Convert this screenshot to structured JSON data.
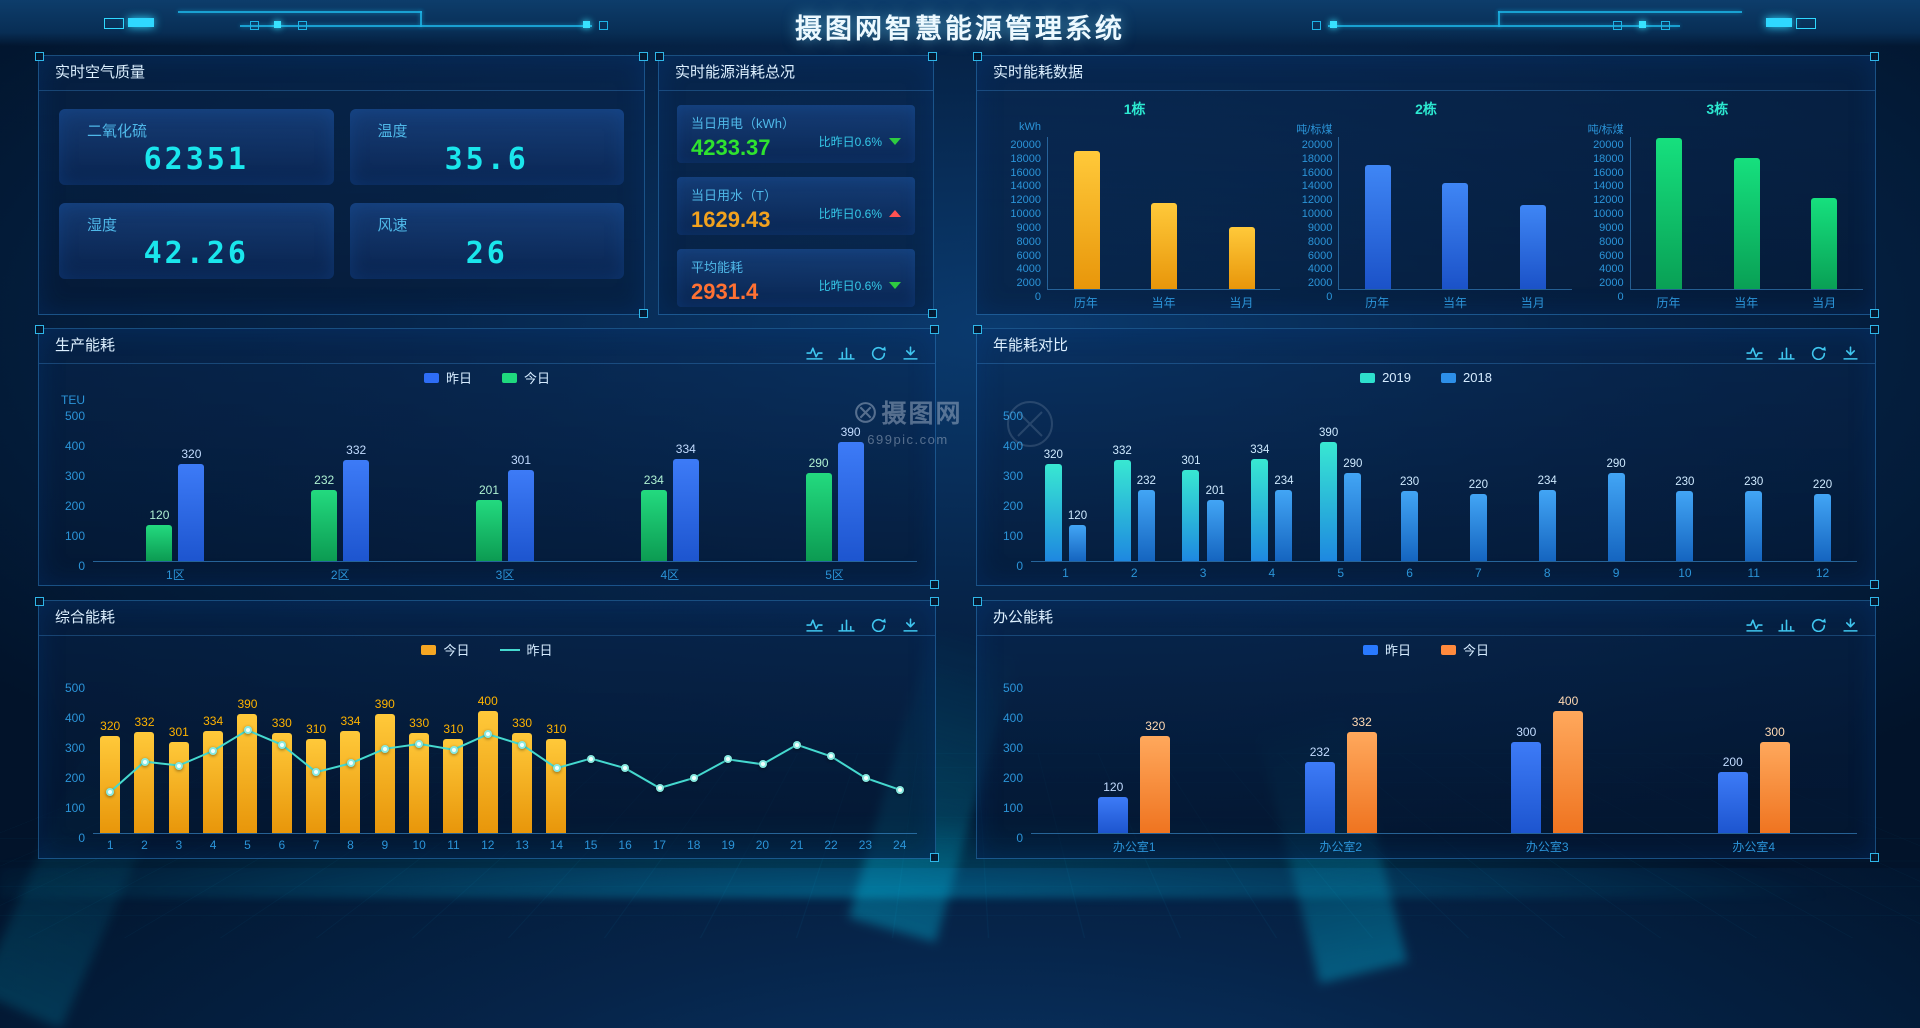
{
  "header": {
    "title": "摄图网智慧能源管理系统"
  },
  "watermark": {
    "brand": "摄图网",
    "domain": "699pic.com"
  },
  "panels": {
    "air": "实时空气质量",
    "summary": "实时能源消耗总况",
    "realtime": "实时能耗数据",
    "production": "生产能耗",
    "yearly": "年能耗对比",
    "composite": "综合能耗",
    "office": "办公能耗"
  },
  "panel_icons": [
    {
      "name": "line-chart-icon"
    },
    {
      "name": "bar-chart-icon"
    },
    {
      "name": "refresh-icon"
    },
    {
      "name": "download-icon"
    }
  ],
  "air_quality": {
    "value_color": "#1ae6ec",
    "cards": [
      {
        "label": "二氧化硫",
        "value": "62351"
      },
      {
        "label": "温度",
        "value": "35.6"
      },
      {
        "label": "湿度",
        "value": "42.26"
      },
      {
        "label": "风速",
        "value": "26"
      }
    ]
  },
  "energy_summary": {
    "rows": [
      {
        "label": "当日用电（kWh）",
        "value": "4233.37",
        "value_color": "#2fe32f",
        "compare": "比昨日0.6%",
        "trend": "down",
        "trend_color": "#2ecc40"
      },
      {
        "label": "当日用水（T）",
        "value": "1629.43",
        "value_color": "#f2a21e",
        "compare": "比昨日0.6%",
        "trend": "up",
        "trend_color": "#ff5252"
      },
      {
        "label": "平均能耗",
        "value": "2931.4",
        "value_color": "#ff7133",
        "compare": "比昨日0.6%",
        "trend": "down",
        "trend_color": "#2ecc40"
      }
    ]
  },
  "chart_data": [
    {
      "id": "building1",
      "type": "bar",
      "title": "1栋",
      "ylabel": "kWh",
      "yticks": [
        0,
        2000,
        4000,
        6000,
        8000,
        9000,
        10000,
        12000,
        14000,
        16000,
        18000,
        20000
      ],
      "categories": [
        "历年",
        "当年",
        "当月"
      ],
      "values": [
        17900,
        10400,
        8500
      ],
      "bar_color": {
        "top": "#ffc93a",
        "bottom": "#e8960a"
      }
    },
    {
      "id": "building2",
      "type": "bar",
      "title": "2栋",
      "ylabel": "吨/标煤",
      "yticks": [
        0,
        2000,
        4000,
        6000,
        8000,
        9000,
        10000,
        12000,
        14000,
        16000,
        18000,
        20000
      ],
      "categories": [
        "历年",
        "当年",
        "当月"
      ],
      "values": [
        15900,
        13400,
        10100
      ],
      "bar_color": {
        "top": "#3f86f5",
        "bottom": "#1b52c8"
      }
    },
    {
      "id": "building3",
      "type": "bar",
      "title": "3栋",
      "ylabel": "吨/标煤",
      "yticks": [
        0,
        2000,
        4000,
        6000,
        8000,
        9000,
        10000,
        12000,
        14000,
        16000,
        18000,
        20000
      ],
      "categories": [
        "历年",
        "当年",
        "当月"
      ],
      "values": [
        19900,
        17000,
        11200
      ],
      "bar_color": {
        "top": "#16e07e",
        "bottom": "#09a055"
      }
    },
    {
      "id": "production",
      "type": "grouped_bar",
      "title": "生产能耗",
      "ylabel": "TEU",
      "ylim": [
        0,
        500
      ],
      "yticks": [
        0,
        100,
        200,
        300,
        400,
        500
      ],
      "legend": [
        {
          "name": "昨日",
          "color": "#2e6df5",
          "marker": "square"
        },
        {
          "name": "今日",
          "color": "#1fd97e",
          "marker": "square"
        }
      ],
      "series_colors": {
        "今日": {
          "top": "#23da7f",
          "bottom": "#0c9b52",
          "label": "#aef0d2"
        },
        "昨日": {
          "top": "#3d7bf7",
          "bottom": "#1d55cf",
          "label": "#c3dcff"
        }
      },
      "categories": [
        {
          "label": "1区",
          "bars": [
            {
              "series": "今日",
              "value": 120
            },
            {
              "series": "昨日",
              "value": 320
            }
          ]
        },
        {
          "label": "2区",
          "bars": [
            {
              "series": "今日",
              "value": 232
            },
            {
              "series": "昨日",
              "value": 332
            }
          ]
        },
        {
          "label": "3区",
          "bars": [
            {
              "series": "今日",
              "value": 201
            },
            {
              "series": "昨日",
              "value": 301
            }
          ]
        },
        {
          "label": "4区",
          "bars": [
            {
              "series": "今日",
              "value": 234
            },
            {
              "series": "昨日",
              "value": 334
            }
          ]
        },
        {
          "label": "5区",
          "bars": [
            {
              "series": "今日",
              "value": 290
            },
            {
              "series": "昨日",
              "value": 390
            }
          ]
        }
      ]
    },
    {
      "id": "yearly",
      "type": "grouped_bar",
      "title": "年能耗对比",
      "ylabel": "",
      "ylim": [
        0,
        500
      ],
      "yticks": [
        0,
        100,
        200,
        300,
        400,
        500
      ],
      "legend": [
        {
          "name": "2019",
          "color": "#2ee0cd",
          "marker": "square"
        },
        {
          "name": "2018",
          "color": "#2d8fe8",
          "marker": "square"
        }
      ],
      "series_colors": {
        "2019": {
          "top": "#38e8d2",
          "bottom": "#1e88e0",
          "label": "#cfeaff"
        },
        "2018": {
          "top": "#42a5f5",
          "bottom": "#1565c0",
          "label": "#cfeaff"
        }
      },
      "categories": [
        {
          "label": "1",
          "bars": [
            {
              "series": "2019",
              "value": 320
            },
            {
              "series": "2018",
              "value": 120
            }
          ]
        },
        {
          "label": "2",
          "bars": [
            {
              "series": "2019",
              "value": 332
            },
            {
              "series": "2018",
              "value": 232
            }
          ]
        },
        {
          "label": "3",
          "bars": [
            {
              "series": "2019",
              "value": 301
            },
            {
              "series": "2018",
              "value": 201
            }
          ]
        },
        {
          "label": "4",
          "bars": [
            {
              "series": "2019",
              "value": 334
            },
            {
              "series": "2018",
              "value": 234
            }
          ]
        },
        {
          "label": "5",
          "bars": [
            {
              "series": "2019",
              "value": 390
            },
            {
              "series": "2018",
              "value": 290
            }
          ]
        },
        {
          "label": "6",
          "bars": [
            {
              "series": "2018",
              "value": 230
            }
          ]
        },
        {
          "label": "7",
          "bars": [
            {
              "series": "2018",
              "value": 220
            }
          ]
        },
        {
          "label": "8",
          "bars": [
            {
              "series": "2018",
              "value": 234
            }
          ]
        },
        {
          "label": "9",
          "bars": [
            {
              "series": "2018",
              "value": 290
            }
          ]
        },
        {
          "label": "10",
          "bars": [
            {
              "series": "2018",
              "value": 230
            }
          ]
        },
        {
          "label": "11",
          "bars": [
            {
              "series": "2018",
              "value": 230
            }
          ]
        },
        {
          "label": "12",
          "bars": [
            {
              "series": "2018",
              "value": 220
            }
          ]
        }
      ]
    },
    {
      "id": "composite",
      "type": "bar_line",
      "title": "综合能耗",
      "ylabel": "",
      "ylim": [
        0,
        500
      ],
      "yticks": [
        0,
        100,
        200,
        300,
        400,
        500
      ],
      "legend": [
        {
          "name": "今日",
          "color": "#f5a623",
          "marker": "square"
        },
        {
          "name": "昨日",
          "color": "#45d9cf",
          "marker": "line"
        }
      ],
      "categories": [
        "1",
        "2",
        "3",
        "4",
        "5",
        "6",
        "7",
        "8",
        "9",
        "10",
        "11",
        "12",
        "13",
        "14",
        "15",
        "16",
        "17",
        "18",
        "19",
        "20",
        "21",
        "22",
        "23",
        "24"
      ],
      "bar_series": {
        "name": "今日",
        "color_top": "#ffc93a",
        "color_bottom": "#e8960a",
        "label_color": "#ffb300",
        "values": [
          320,
          332,
          301,
          334,
          390,
          330,
          310,
          334,
          390,
          330,
          310,
          400,
          330,
          310
        ]
      },
      "line_series": {
        "name": "昨日",
        "color": "#45d9cf",
        "values": [
          135,
          235,
          222,
          270,
          338,
          290,
          200,
          229,
          277,
          293,
          274,
          325,
          290,
          213,
          245,
          213,
          148,
          181,
          242,
          226,
          290,
          252,
          181,
          142
        ]
      }
    },
    {
      "id": "office",
      "type": "grouped_bar",
      "title": "办公能耗",
      "ylabel": "",
      "ylim": [
        0,
        500
      ],
      "yticks": [
        0,
        100,
        200,
        300,
        400,
        500
      ],
      "legend": [
        {
          "name": "昨日",
          "color": "#2979ff",
          "marker": "square"
        },
        {
          "name": "今日",
          "color": "#ff8a3d",
          "marker": "square"
        }
      ],
      "series_colors": {
        "昨日": {
          "top": "#3d7bf7",
          "bottom": "#1d55cf",
          "label": "#c3dcff"
        },
        "今日": {
          "top": "#ffa85c",
          "bottom": "#ef7420",
          "label": "#ffd9b3"
        }
      },
      "categories": [
        {
          "label": "办公室1",
          "bars": [
            {
              "series": "昨日",
              "value": 120
            },
            {
              "series": "今日",
              "value": 320
            }
          ]
        },
        {
          "label": "办公室2",
          "bars": [
            {
              "series": "昨日",
              "value": 232
            },
            {
              "series": "今日",
              "value": 332
            }
          ]
        },
        {
          "label": "办公室3",
          "bars": [
            {
              "series": "昨日",
              "value": 300
            },
            {
              "series": "今日",
              "value": 400
            }
          ]
        },
        {
          "label": "办公室4",
          "bars": [
            {
              "series": "昨日",
              "value": 200
            },
            {
              "series": "今日",
              "value": 300
            }
          ]
        }
      ]
    }
  ]
}
